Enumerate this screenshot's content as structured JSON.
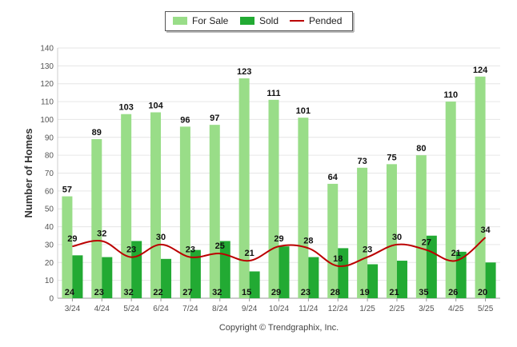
{
  "chart_data": {
    "type": "bar",
    "title": "",
    "xlabel": "",
    "ylabel": "Number of Homes",
    "ylim": [
      0,
      140
    ],
    "yticks": [
      0,
      10,
      20,
      30,
      40,
      50,
      60,
      70,
      80,
      90,
      100,
      110,
      120,
      130,
      140
    ],
    "grid": true,
    "legend_position": "top-center",
    "categories": [
      "3/24",
      "4/24",
      "5/24",
      "6/24",
      "7/24",
      "8/24",
      "9/24",
      "10/24",
      "11/24",
      "12/24",
      "1/25",
      "2/25",
      "3/25",
      "4/25",
      "5/25"
    ],
    "series": [
      {
        "name": "For Sale",
        "kind": "bar",
        "color": "#99dd88",
        "values": [
          57,
          89,
          103,
          104,
          96,
          97,
          123,
          111,
          101,
          64,
          73,
          75,
          80,
          110,
          124
        ]
      },
      {
        "name": "Sold",
        "kind": "bar",
        "color": "#22aa33",
        "values": [
          24,
          23,
          32,
          22,
          27,
          32,
          15,
          29,
          23,
          28,
          19,
          21,
          35,
          26,
          20
        ]
      },
      {
        "name": "Pended",
        "kind": "line",
        "color": "#bb0000",
        "values": [
          29,
          32,
          23,
          30,
          23,
          25,
          21,
          29,
          28,
          18,
          23,
          30,
          27,
          21,
          34
        ]
      }
    ],
    "footer": "Copyright © Trendgraphix, Inc."
  }
}
